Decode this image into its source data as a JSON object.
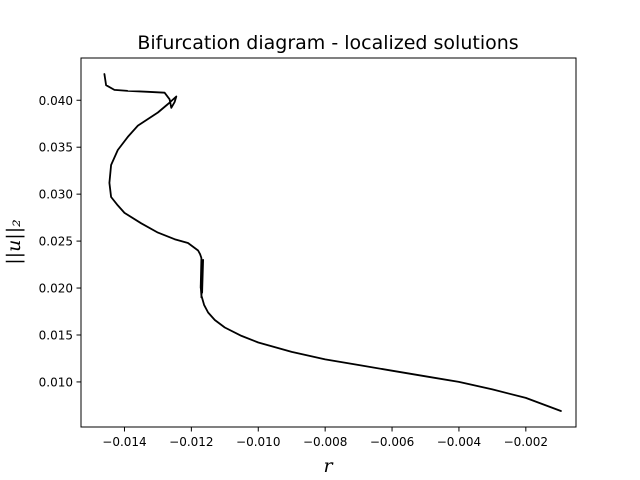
{
  "chart_data": {
    "type": "line",
    "title": "Bifurcation diagram - localized solutions",
    "xlabel": "r",
    "ylabel": "||u||₂",
    "xlim": [
      -0.0153,
      -0.0005
    ],
    "ylim": [
      0.0052,
      0.0445
    ],
    "x_ticks": [
      -0.014,
      -0.012,
      -0.01,
      -0.008,
      -0.006,
      -0.004,
      -0.002
    ],
    "x_tick_labels": [
      "−0.014",
      "−0.012",
      "−0.010",
      "−0.008",
      "−0.006",
      "−0.004",
      "−0.002"
    ],
    "y_ticks": [
      0.01,
      0.015,
      0.02,
      0.025,
      0.03,
      0.035,
      0.04
    ],
    "y_tick_labels": [
      "0.010",
      "0.015",
      "0.020",
      "0.025",
      "0.030",
      "0.035",
      "0.040"
    ],
    "grid": false,
    "line_color": "#000000",
    "series": [
      {
        "x": [
          -0.00095,
          -0.002,
          -0.003,
          -0.004,
          -0.005,
          -0.006,
          -0.007,
          -0.008,
          -0.009,
          -0.01,
          -0.0105,
          -0.011,
          -0.0113,
          -0.0115,
          -0.01162,
          -0.0117,
          -0.01172,
          -0.0117,
          -0.01165,
          -0.01168,
          -0.01166,
          -0.0117,
          -0.01168,
          -0.01172,
          -0.0117,
          -0.01174,
          -0.0118,
          -0.0121,
          -0.0125,
          -0.013,
          -0.0135,
          -0.014,
          -0.0142,
          -0.0144,
          -0.01445,
          -0.0144,
          -0.0142,
          -0.0139,
          -0.0136,
          -0.013,
          -0.0127,
          -0.01245,
          -0.0125,
          -0.0126,
          -0.01265,
          -0.0128,
          -0.0133,
          -0.0139,
          -0.0143,
          -0.01455,
          -0.0146
        ],
        "y": [
          0.0069,
          0.0083,
          0.0092,
          0.01,
          0.0106,
          0.0112,
          0.0118,
          0.0124,
          0.0132,
          0.0142,
          0.0149,
          0.0158,
          0.0166,
          0.0174,
          0.0182,
          0.0192,
          0.0202,
          0.0215,
          0.023,
          0.0195,
          0.0228,
          0.019,
          0.0225,
          0.02,
          0.0232,
          0.0236,
          0.024,
          0.0248,
          0.0252,
          0.0259,
          0.0269,
          0.028,
          0.0288,
          0.0297,
          0.0312,
          0.0331,
          0.0347,
          0.0361,
          0.0373,
          0.0387,
          0.0396,
          0.0404,
          0.0398,
          0.0392,
          0.0401,
          0.0408,
          0.0409,
          0.041,
          0.0411,
          0.0416,
          0.0428
        ]
      }
    ]
  }
}
